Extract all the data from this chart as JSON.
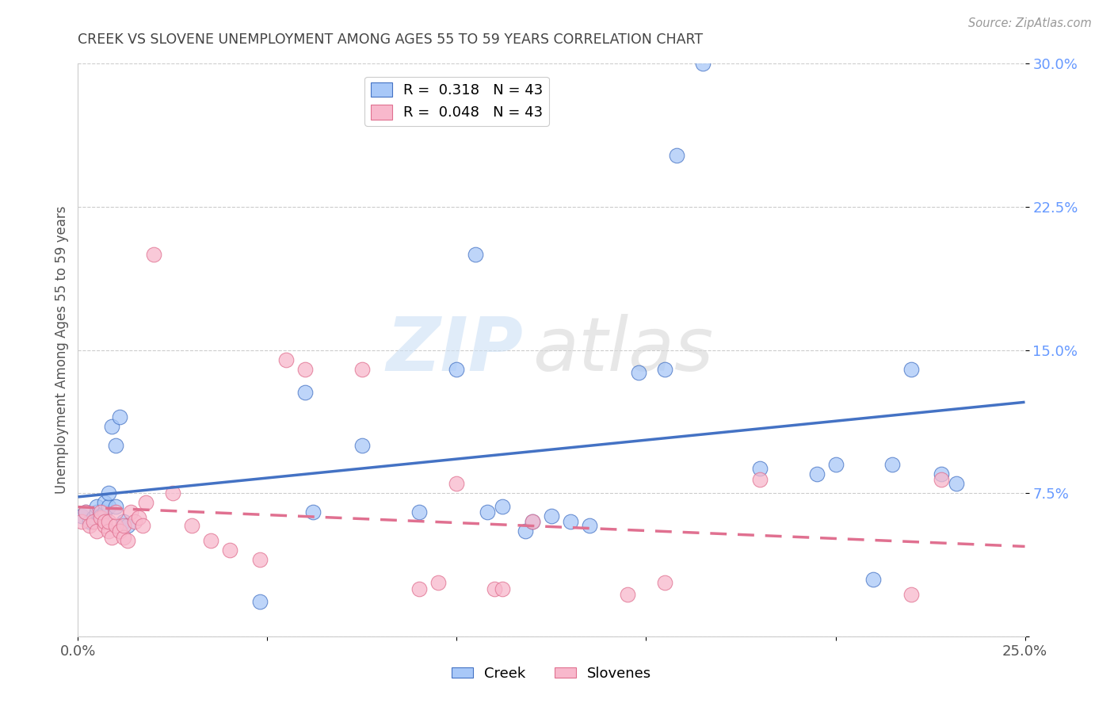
{
  "title": "CREEK VS SLOVENE UNEMPLOYMENT AMONG AGES 55 TO 59 YEARS CORRELATION CHART",
  "source": "Source: ZipAtlas.com",
  "ylabel": "Unemployment Among Ages 55 to 59 years",
  "xlim": [
    0.0,
    0.25
  ],
  "ylim": [
    0.0,
    0.3
  ],
  "xticks": [
    0.0,
    0.05,
    0.1,
    0.15,
    0.2,
    0.25
  ],
  "yticks": [
    0.0,
    0.075,
    0.15,
    0.225,
    0.3
  ],
  "xtick_labels": [
    "0.0%",
    "",
    "",
    "",
    "",
    "25.0%"
  ],
  "ytick_labels": [
    "",
    "7.5%",
    "15.0%",
    "22.5%",
    "30.0%"
  ],
  "creek_R": "0.318",
  "creek_N": 43,
  "slovene_R": "0.048",
  "slovene_N": 43,
  "creek_color": "#a8c8f8",
  "slovene_color": "#f8b8cc",
  "creek_line_color": "#4472c4",
  "slovene_line_color": "#e07090",
  "creek_x": [
    0.001,
    0.002,
    0.003,
    0.004,
    0.005,
    0.005,
    0.006,
    0.007,
    0.007,
    0.008,
    0.008,
    0.009,
    0.01,
    0.01,
    0.011,
    0.012,
    0.013,
    0.048,
    0.06,
    0.062,
    0.075,
    0.09,
    0.1,
    0.105,
    0.108,
    0.112,
    0.118,
    0.12,
    0.125,
    0.13,
    0.135,
    0.148,
    0.155,
    0.158,
    0.165,
    0.18,
    0.195,
    0.2,
    0.21,
    0.215,
    0.22,
    0.228,
    0.232
  ],
  "creek_y": [
    0.063,
    0.065,
    0.06,
    0.062,
    0.065,
    0.068,
    0.063,
    0.065,
    0.07,
    0.068,
    0.075,
    0.11,
    0.068,
    0.1,
    0.115,
    0.06,
    0.058,
    0.018,
    0.128,
    0.065,
    0.1,
    0.065,
    0.14,
    0.2,
    0.065,
    0.068,
    0.055,
    0.06,
    0.063,
    0.06,
    0.058,
    0.138,
    0.14,
    0.252,
    0.3,
    0.088,
    0.085,
    0.09,
    0.03,
    0.09,
    0.14,
    0.085,
    0.08
  ],
  "slovene_x": [
    0.001,
    0.002,
    0.003,
    0.004,
    0.005,
    0.006,
    0.006,
    0.007,
    0.007,
    0.008,
    0.008,
    0.009,
    0.01,
    0.01,
    0.011,
    0.012,
    0.012,
    0.013,
    0.014,
    0.015,
    0.016,
    0.017,
    0.018,
    0.02,
    0.025,
    0.03,
    0.035,
    0.04,
    0.048,
    0.055,
    0.06,
    0.075,
    0.09,
    0.095,
    0.1,
    0.11,
    0.112,
    0.12,
    0.145,
    0.155,
    0.18,
    0.22,
    0.228
  ],
  "slovene_y": [
    0.06,
    0.065,
    0.058,
    0.06,
    0.055,
    0.062,
    0.065,
    0.058,
    0.06,
    0.055,
    0.06,
    0.052,
    0.058,
    0.065,
    0.055,
    0.052,
    0.058,
    0.05,
    0.065,
    0.06,
    0.062,
    0.058,
    0.07,
    0.2,
    0.075,
    0.058,
    0.05,
    0.045,
    0.04,
    0.145,
    0.14,
    0.14,
    0.025,
    0.028,
    0.08,
    0.025,
    0.025,
    0.06,
    0.022,
    0.028,
    0.082,
    0.022,
    0.082
  ],
  "watermark_zip": "ZIP",
  "watermark_atlas": "atlas",
  "background_color": "#ffffff",
  "grid_color": "#cccccc",
  "title_color": "#444444",
  "label_color": "#555555",
  "ytick_color": "#6699ff",
  "xtick_color": "#555555"
}
